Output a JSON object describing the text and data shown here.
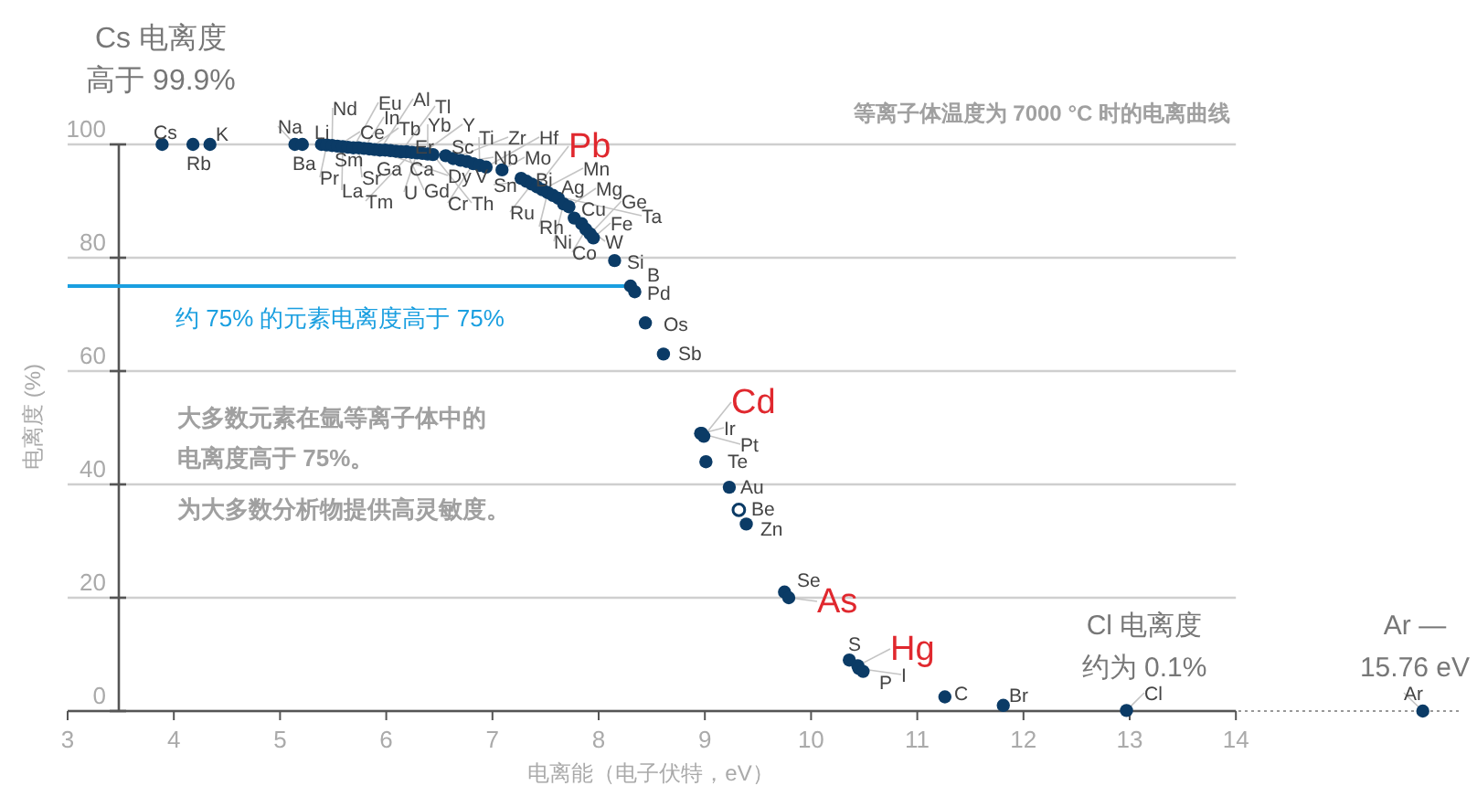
{
  "chart_data": {
    "type": "scatter",
    "xlabel": "电离能（电子伏特，eV）",
    "ylabel": "电离度 (%)",
    "xlim": [
      3,
      16.1
    ],
    "xticks": [
      3,
      4,
      5,
      6,
      7,
      8,
      9,
      10,
      11,
      12,
      13,
      14
    ],
    "ylim": [
      0,
      100
    ],
    "yticks": [
      0,
      20,
      40,
      60,
      80,
      100
    ],
    "grid": "y",
    "marker": "circle",
    "series": [
      {
        "color": "#0b3b66",
        "x": [
          3.89,
          4.18,
          4.34,
          5.14,
          5.21,
          5.39,
          5.44,
          5.49,
          5.54,
          5.59,
          5.64,
          5.69,
          5.74,
          5.79,
          5.84,
          5.89,
          5.94,
          5.99,
          6.04,
          6.09,
          6.14,
          6.19,
          6.24,
          6.29,
          6.34,
          6.39,
          6.44,
          6.56,
          6.7,
          6.76,
          6.82,
          6.88,
          6.94,
          6.63,
          7.09,
          7.27,
          7.32,
          7.37,
          7.42,
          7.47,
          7.52,
          7.57,
          7.62,
          7.67,
          7.72,
          7.77,
          7.84,
          7.88,
          7.92,
          7.95,
          8.15,
          8.3,
          8.34,
          8.44,
          8.61,
          8.96,
          8.97,
          8.99,
          9.01,
          9.23,
          9.32,
          9.39,
          9.75,
          9.79,
          10.36,
          10.44,
          10.45,
          10.49,
          11.26,
          11.81,
          12.97,
          15.76
        ],
        "values": [
          100,
          100,
          100,
          100,
          100,
          100,
          99.9,
          99.8,
          99.7,
          99.6,
          99.5,
          99.4,
          99.4,
          99.3,
          99.2,
          99.1,
          99,
          99,
          98.9,
          98.8,
          98.7,
          98.7,
          98.6,
          98.5,
          98.4,
          98.3,
          98.2,
          98,
          97.2,
          97,
          96.6,
          96.3,
          96,
          97.5,
          95.5,
          94,
          93.5,
          93,
          92.5,
          92,
          91.5,
          91,
          90.5,
          89.5,
          89,
          87,
          86,
          85,
          84.2,
          83.5,
          79.5,
          75,
          74,
          68.5,
          63,
          49,
          49,
          48.5,
          44,
          39.5,
          35.5,
          33,
          21,
          20,
          9,
          8,
          7.5,
          7,
          2.5,
          1,
          0.1,
          0
        ]
      }
    ],
    "ref_lines": [
      {
        "axis": "y",
        "value": 75,
        "label": "约 75% 的元素电离度高于 75%",
        "color": "#1a9fe0"
      }
    ],
    "annotations": [
      "Cs 电离度",
      "高于 99.9%",
      "等离子体温度为 7000 °C 时的电离曲线",
      "大多数元素在氩等离子体中的",
      "电离度高于 75%。",
      "为大多数分析物提供高灵敏度。",
      "Cl 电离度",
      "约为 0.1%",
      "Ar —\n15.76 eV",
      {
        "text": "Cs",
        "x": 3.89,
        "y": 100
      },
      {
        "text": "Rb",
        "x": 4.18,
        "y": 100
      },
      {
        "text": "K",
        "x": 4.34,
        "y": 100
      },
      {
        "text": "Na",
        "x": 5.14,
        "y": 100
      },
      {
        "text": "Ba",
        "x": 5.21,
        "y": 100
      },
      {
        "text": "Li",
        "x": 5.39,
        "y": 100
      },
      {
        "text": "Pr",
        "x": 5.44,
        "y": 99.9
      },
      {
        "text": "Nd",
        "x": 5.49,
        "y": 99.8
      },
      {
        "text": "Ce",
        "x": 5.54,
        "y": 99.7
      },
      {
        "text": "La",
        "x": 5.59,
        "y": 99.6
      },
      {
        "text": "Sm",
        "x": 5.64,
        "y": 99.5
      },
      {
        "text": "Eu",
        "x": 5.69,
        "y": 99.4
      },
      {
        "text": "Sr",
        "x": 5.74,
        "y": 99.4
      },
      {
        "text": "In",
        "x": 5.79,
        "y": 99.3
      },
      {
        "text": "Tb",
        "x": 5.84,
        "y": 99.2
      },
      {
        "text": "Dy",
        "x": 5.89,
        "y": 99.1
      },
      {
        "text": "Al",
        "x": 5.94,
        "y": 99
      },
      {
        "text": "Ga",
        "x": 5.99,
        "y": 99
      },
      {
        "text": "Er",
        "x": 6.04,
        "y": 98.9
      },
      {
        "text": "Ca",
        "x": 6.09,
        "y": 98.8
      },
      {
        "text": "Tl",
        "x": 6.14,
        "y": 98.7
      },
      {
        "text": "Gd",
        "x": 6.19,
        "y": 98.7
      },
      {
        "text": "Tm",
        "x": 6.24,
        "y": 98.6
      },
      {
        "text": "U",
        "x": 6.29,
        "y": 98.5
      },
      {
        "text": "Y",
        "x": 6.34,
        "y": 98.4
      },
      {
        "text": "Yb",
        "x": 6.39,
        "y": 98.3
      },
      {
        "text": "Th",
        "x": 6.44,
        "y": 98.2
      },
      {
        "text": "Sc",
        "x": 6.56,
        "y": 98
      },
      {
        "text": "V",
        "x": 6.7,
        "y": 97.2
      },
      {
        "text": "Nb",
        "x": 6.76,
        "y": 97
      },
      {
        "text": "Cr",
        "x": 6.82,
        "y": 96.6
      },
      {
        "text": "Ti",
        "x": 6.88,
        "y": 96.3
      },
      {
        "text": "Hf",
        "x": 6.94,
        "y": 96
      },
      {
        "text": "Zr",
        "x": 6.63,
        "y": 97.5
      },
      {
        "text": "Mo",
        "x": 7.09,
        "y": 95.5
      },
      {
        "text": "Bi",
        "x": 7.27,
        "y": 94
      },
      {
        "text": "Sn",
        "x": 7.32,
        "y": 93.5
      },
      {
        "text": "Ru",
        "x": 7.37,
        "y": 93
      },
      {
        "text": "Pb",
        "x": 7.42,
        "y": 92.5
      },
      {
        "text": "Mn",
        "x": 7.47,
        "y": 92
      },
      {
        "text": "Rh",
        "x": 7.52,
        "y": 91.5
      },
      {
        "text": "Ta",
        "x": 7.57,
        "y": 91
      },
      {
        "text": "Ag",
        "x": 7.62,
        "y": 90.5
      },
      {
        "text": "Ni",
        "x": 7.67,
        "y": 89.5
      },
      {
        "text": "Mg",
        "x": 7.72,
        "y": 89
      },
      {
        "text": "Cu",
        "x": 7.77,
        "y": 87
      },
      {
        "text": "W",
        "x": 7.84,
        "y": 86
      },
      {
        "text": "Co",
        "x": 7.88,
        "y": 85
      },
      {
        "text": "Ge",
        "x": 7.92,
        "y": 84.2
      },
      {
        "text": "Fe",
        "x": 7.95,
        "y": 83.5
      },
      {
        "text": "Si",
        "x": 8.15,
        "y": 79.5
      },
      {
        "text": "B",
        "x": 8.3,
        "y": 75
      },
      {
        "text": "Pd",
        "x": 8.34,
        "y": 74
      },
      {
        "text": "Os",
        "x": 8.44,
        "y": 68.5
      },
      {
        "text": "Sb",
        "x": 8.61,
        "y": 63
      },
      {
        "text": "Pt",
        "x": 8.96,
        "y": 49
      },
      {
        "text": "Ir",
        "x": 8.97,
        "y": 49
      },
      {
        "text": "Cd",
        "x": 8.99,
        "y": 48.5
      },
      {
        "text": "Te",
        "x": 9.01,
        "y": 44
      },
      {
        "text": "Au",
        "x": 9.23,
        "y": 39.5
      },
      {
        "text": "Be",
        "x": 9.32,
        "y": 35.5
      },
      {
        "text": "Zn",
        "x": 9.39,
        "y": 33
      },
      {
        "text": "Se",
        "x": 9.75,
        "y": 21
      },
      {
        "text": "As",
        "x": 9.79,
        "y": 20
      },
      {
        "text": "S",
        "x": 10.36,
        "y": 9
      },
      {
        "text": "Hg",
        "x": 10.44,
        "y": 8
      },
      {
        "text": "I",
        "x": 10.45,
        "y": 7.5
      },
      {
        "text": "P",
        "x": 10.49,
        "y": 7
      },
      {
        "text": "C",
        "x": 11.26,
        "y": 2.5
      },
      {
        "text": "Br",
        "x": 11.81,
        "y": 1
      },
      {
        "text": "Cl",
        "x": 12.97,
        "y": 0.1
      },
      {
        "text": "Ar",
        "x": 15.76,
        "y": 0
      }
    ]
  }
}
